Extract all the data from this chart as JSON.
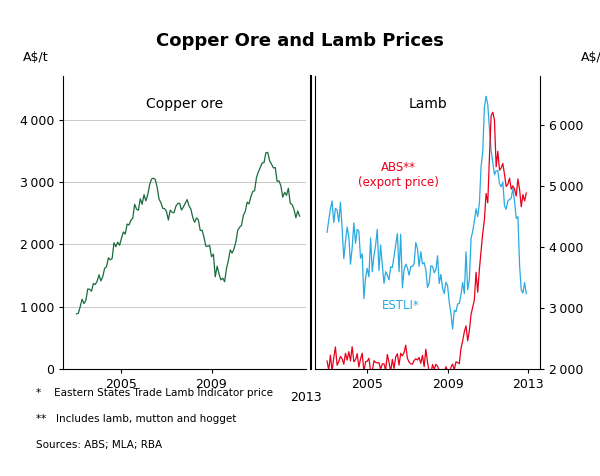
{
  "title": "Copper Ore and Lamb Prices",
  "left_label": "Copper ore",
  "right_label": "Lamb",
  "ylabel_left": "A$/t",
  "ylabel_right": "A$/t",
  "footnote1": "*    Eastern States Trade Lamb Indicator price",
  "footnote2": "**   Includes lamb, mutton and hogget",
  "footnote3": "Sources: ABS; MLA; RBA",
  "abs_label": "ABS**\n(export price)",
  "estli_label": "ESTLI*",
  "copper_color": "#1a6b3c",
  "abs_color": "#e8001c",
  "estli_color": "#29aae1",
  "grid_color": "#c8c8c8",
  "background_color": "#ffffff",
  "copper_ylim": [
    0,
    4700
  ],
  "copper_yticks": [
    0,
    1000,
    2000,
    3000,
    4000
  ],
  "lamb_ylim": [
    2000,
    6800
  ],
  "lamb_yticks": [
    2000,
    3000,
    4000,
    5000,
    6000
  ],
  "xticks_left": [
    2005,
    2009
  ],
  "xticks_right": [
    2005,
    2009,
    2013
  ]
}
